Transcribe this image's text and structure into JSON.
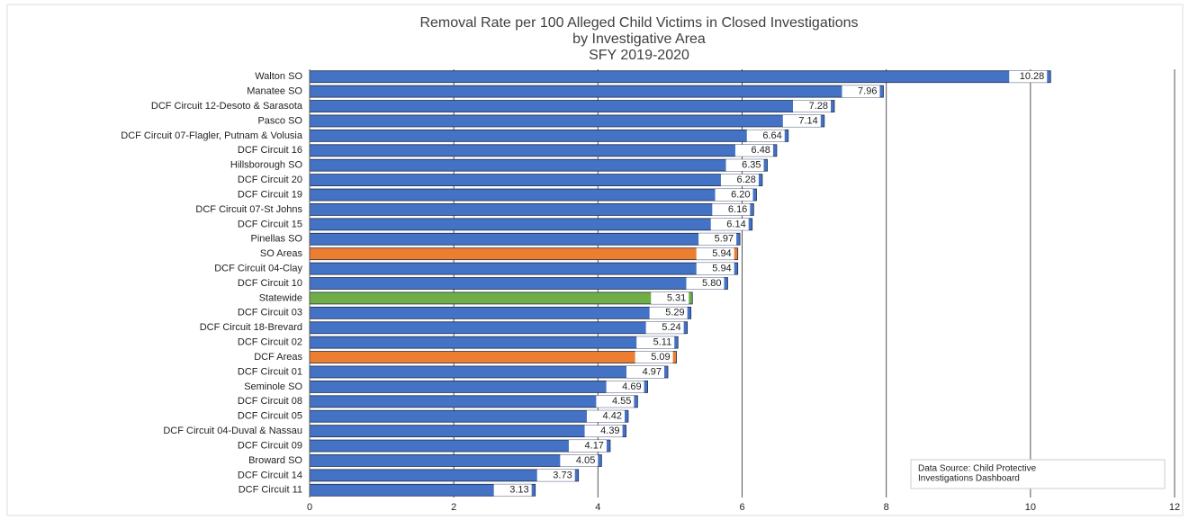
{
  "chart_data": {
    "type": "bar",
    "orientation": "horizontal",
    "title": [
      "Removal Rate per 100 Alleged Child Victims in Closed Investigations",
      "by Investigative Area",
      "SFY 2019-2020"
    ],
    "categories": [
      "Walton SO",
      "Manatee SO",
      "DCF Circuit 12-Desoto & Sarasota",
      "Pasco SO",
      "DCF Circuit 07-Flagler, Putnam & Volusia",
      "DCF Circuit 16",
      "Hillsborough SO",
      "DCF Circuit 20",
      "DCF Circuit 19",
      "DCF Circuit 07-St Johns",
      "DCF Circuit 15",
      "Pinellas SO",
      "SO Areas",
      "DCF Circuit 04-Clay",
      "DCF Circuit 10",
      "Statewide",
      "DCF Circuit 03",
      "DCF Circuit 18-Brevard",
      "DCF Circuit 02",
      "DCF Areas",
      "DCF Circuit 01",
      "Seminole SO",
      "DCF Circuit 08",
      "DCF Circuit 05",
      "DCF Circuit 04-Duval  & Nassau",
      "DCF Circuit 09",
      "Broward SO",
      "DCF Circuit 14",
      "DCF Circuit 11"
    ],
    "values": [
      10.28,
      7.96,
      7.28,
      7.14,
      6.64,
      6.48,
      6.35,
      6.28,
      6.2,
      6.16,
      6.14,
      5.97,
      5.94,
      5.94,
      5.8,
      5.31,
      5.29,
      5.24,
      5.11,
      5.09,
      4.97,
      4.69,
      4.55,
      4.42,
      4.39,
      4.17,
      4.05,
      3.73,
      3.13
    ],
    "value_labels": [
      "10.28",
      "7.96",
      "7.28",
      "7.14",
      "6.64",
      "6.48",
      "6.35",
      "6.28",
      "6.20",
      "6.16",
      "6.14",
      "5.97",
      "5.94",
      "5.94",
      "5.80",
      "5.31",
      "5.29",
      "5.24",
      "5.11",
      "5.09",
      "4.97",
      "4.69",
      "4.55",
      "4.42",
      "4.39",
      "4.17",
      "4.05",
      "3.73",
      "3.13"
    ],
    "colors": [
      "#4472c4",
      "#4472c4",
      "#4472c4",
      "#4472c4",
      "#4472c4",
      "#4472c4",
      "#4472c4",
      "#4472c4",
      "#4472c4",
      "#4472c4",
      "#4472c4",
      "#4472c4",
      "#ed7d31",
      "#4472c4",
      "#4472c4",
      "#70ad47",
      "#4472c4",
      "#4472c4",
      "#4472c4",
      "#ed7d31",
      "#4472c4",
      "#4472c4",
      "#4472c4",
      "#4472c4",
      "#4472c4",
      "#4472c4",
      "#4472c4",
      "#4472c4",
      "#4472c4"
    ],
    "xlim": [
      0,
      12
    ],
    "xticks": [
      0,
      2,
      4,
      6,
      8,
      10,
      12
    ],
    "grid": true,
    "annotation": [
      "Data Source: Child Protective",
      "Investigations Dashboard"
    ]
  }
}
